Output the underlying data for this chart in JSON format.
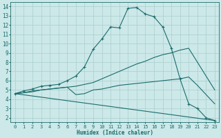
{
  "xlabel": "Humidex (Indice chaleur)",
  "background_color": "#cce8e8",
  "grid_color": "#aacece",
  "line_color": "#1a6b6b",
  "xlim": [
    -0.5,
    23.5
  ],
  "ylim": [
    1.5,
    14.5
  ],
  "xticks": [
    0,
    1,
    2,
    3,
    4,
    5,
    6,
    7,
    8,
    9,
    10,
    11,
    12,
    13,
    14,
    15,
    16,
    17,
    18,
    19,
    20,
    21,
    22,
    23
  ],
  "yticks": [
    2,
    3,
    4,
    5,
    6,
    7,
    8,
    9,
    10,
    11,
    12,
    13,
    14
  ],
  "series": [
    {
      "x": [
        0,
        1,
        2,
        3,
        4,
        5,
        6,
        7,
        8,
        9,
        10,
        11,
        12,
        13,
        14,
        15,
        16,
        17,
        18,
        19,
        20,
        21,
        22,
        23
      ],
      "y": [
        4.6,
        4.9,
        5.1,
        5.4,
        5.5,
        5.6,
        6.0,
        6.5,
        7.5,
        9.4,
        10.5,
        11.8,
        11.7,
        13.8,
        13.9,
        13.2,
        12.9,
        11.8,
        9.5,
        6.2,
        3.5,
        3.0,
        2.0,
        1.7
      ],
      "has_markers": true
    },
    {
      "x": [
        0,
        1,
        2,
        3,
        4,
        5,
        6,
        7,
        8,
        9,
        10,
        11,
        12,
        13,
        14,
        15,
        16,
        17,
        18,
        19,
        20,
        21,
        22,
        23
      ],
      "y": [
        4.6,
        4.7,
        4.9,
        5.0,
        5.1,
        5.2,
        5.3,
        5.4,
        5.6,
        5.8,
        6.2,
        6.6,
        7.0,
        7.4,
        7.8,
        8.1,
        8.5,
        8.8,
        9.0,
        9.3,
        9.5,
        8.0,
        6.5,
        5.0
      ],
      "has_markers": false
    },
    {
      "x": [
        0,
        1,
        2,
        3,
        4,
        5,
        6,
        7,
        8,
        9,
        10,
        11,
        12,
        13,
        14,
        15,
        16,
        17,
        18,
        19,
        20,
        21,
        22,
        23
      ],
      "y": [
        4.6,
        4.7,
        4.8,
        5.0,
        5.1,
        5.2,
        5.3,
        4.5,
        4.6,
        5.0,
        5.1,
        5.3,
        5.5,
        5.6,
        5.7,
        5.8,
        5.9,
        6.0,
        6.1,
        6.2,
        6.4,
        5.5,
        4.5,
        3.5
      ],
      "has_markers": false
    },
    {
      "x": [
        0,
        23
      ],
      "y": [
        4.6,
        1.7
      ],
      "has_markers": false
    }
  ]
}
